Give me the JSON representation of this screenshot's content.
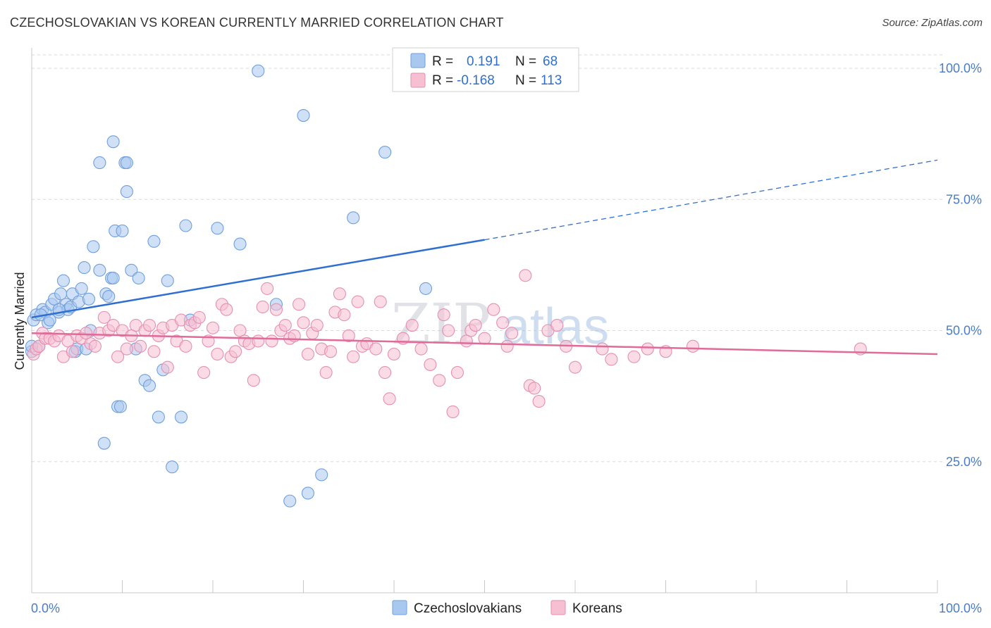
{
  "title": "CZECHOSLOVAKIAN VS KOREAN CURRENTLY MARRIED CORRELATION CHART",
  "source": "Source: ZipAtlas.com",
  "watermark": {
    "zip": "ZIP",
    "atlas": "atlas"
  },
  "chart_data": {
    "type": "scatter",
    "title": "CZECHOSLOVAKIAN VS KOREAN CURRENTLY MARRIED CORRELATION CHART",
    "xlabel": "",
    "ylabel": "Currently Married",
    "xlim": [
      0,
      100
    ],
    "ylim": [
      0,
      105
    ],
    "x_tick_labels": [
      "0.0%",
      "100.0%"
    ],
    "y_ticks": [
      25,
      50,
      75,
      100
    ],
    "y_tick_labels": [
      "25.0%",
      "50.0%",
      "75.0%",
      "100.0%"
    ],
    "grid": "horizontal dashed",
    "legend_position": "top-center",
    "legend": [
      {
        "name": "Czechoslovakians",
        "r_label": "R =",
        "r": "0.191",
        "n_label": "N =",
        "n": "68",
        "color": "#a9c8f0",
        "stroke": "#6f9fdc"
      },
      {
        "name": "Koreans",
        "r_label": "R =",
        "r": "-0.168",
        "n_label": "N =",
        "n": "113",
        "color": "#f7bfd2",
        "stroke": "#e68fb0"
      }
    ],
    "series": [
      {
        "name": "Czechoslovakians",
        "color": "#a9c8f0",
        "stroke": "#6f9fdc",
        "trend": {
          "x0": 0,
          "y0": 52.5,
          "x1": 50,
          "y1": 67.3,
          "x_dash_end": 100,
          "y_dash_end": 82.5,
          "color": "#2e6fd0"
        },
        "points": [
          [
            0.2,
            52
          ],
          [
            0.5,
            53
          ],
          [
            0.8,
            47
          ],
          [
            1.2,
            54
          ],
          [
            1.5,
            53.5
          ],
          [
            1.8,
            51.5
          ],
          [
            2.2,
            55
          ],
          [
            2.5,
            56
          ],
          [
            3,
            53.5
          ],
          [
            3.2,
            57
          ],
          [
            3.5,
            59.5
          ],
          [
            3.8,
            55
          ],
          [
            4,
            54
          ],
          [
            4.3,
            54.5
          ],
          [
            4.5,
            57
          ],
          [
            4.8,
            46
          ],
          [
            5,
            46.5
          ],
          [
            5.2,
            55.5
          ],
          [
            5.5,
            58
          ],
          [
            5.8,
            62
          ],
          [
            6,
            46.5
          ],
          [
            6.3,
            56
          ],
          [
            6.5,
            50
          ],
          [
            6.8,
            66
          ],
          [
            7.5,
            82
          ],
          [
            7.5,
            61.5
          ],
          [
            8,
            28.5
          ],
          [
            8.2,
            57
          ],
          [
            8.5,
            56.5
          ],
          [
            8.8,
            60
          ],
          [
            9,
            86
          ],
          [
            9,
            60
          ],
          [
            9.2,
            69
          ],
          [
            9.5,
            35.5
          ],
          [
            9.8,
            35.5
          ],
          [
            10,
            69
          ],
          [
            10.3,
            82
          ],
          [
            10.5,
            82
          ],
          [
            10.5,
            76.5
          ],
          [
            11,
            61.5
          ],
          [
            11.5,
            46.5
          ],
          [
            11.8,
            60
          ],
          [
            12.5,
            40.5
          ],
          [
            13,
            39.5
          ],
          [
            13.5,
            67
          ],
          [
            14,
            33.5
          ],
          [
            14.5,
            42.5
          ],
          [
            15,
            59.5
          ],
          [
            15.5,
            24
          ],
          [
            16.5,
            33.5
          ],
          [
            17,
            70
          ],
          [
            17.5,
            52
          ],
          [
            20.5,
            69.5
          ],
          [
            23,
            66.5
          ],
          [
            25,
            99.5
          ],
          [
            27,
            55
          ],
          [
            28.5,
            17.5
          ],
          [
            30,
            91
          ],
          [
            30.5,
            19
          ],
          [
            32,
            22.5
          ],
          [
            35.5,
            71.5
          ],
          [
            39,
            84
          ],
          [
            43.5,
            58
          ],
          [
            0,
            46
          ],
          [
            0,
            47
          ],
          [
            1,
            53
          ],
          [
            2,
            52
          ],
          [
            3,
            54
          ]
        ]
      },
      {
        "name": "Koreans",
        "color": "#f7bfd2",
        "stroke": "#e68fb0",
        "trend": {
          "x0": 0,
          "y0": 49.5,
          "x1": 100,
          "y1": 45.5,
          "color": "#e06a98"
        },
        "points": [
          [
            0.2,
            45.5
          ],
          [
            0.5,
            46.5
          ],
          [
            0.8,
            47
          ],
          [
            1.2,
            49.5
          ],
          [
            1.5,
            48.5
          ],
          [
            2,
            48.5
          ],
          [
            2.5,
            48
          ],
          [
            3,
            49
          ],
          [
            3.5,
            45
          ],
          [
            4,
            48
          ],
          [
            4.5,
            46
          ],
          [
            5,
            49
          ],
          [
            5.5,
            48.5
          ],
          [
            6,
            49.5
          ],
          [
            6.5,
            47.5
          ],
          [
            7,
            47
          ],
          [
            7.5,
            49.5
          ],
          [
            8,
            52.5
          ],
          [
            8.5,
            50
          ],
          [
            9,
            51
          ],
          [
            9.5,
            45
          ],
          [
            10,
            50
          ],
          [
            10.5,
            46.5
          ],
          [
            11,
            49
          ],
          [
            11.5,
            51
          ],
          [
            12,
            47
          ],
          [
            12.5,
            50
          ],
          [
            13,
            51
          ],
          [
            13.5,
            46
          ],
          [
            14,
            49
          ],
          [
            14.5,
            50.5
          ],
          [
            15,
            43
          ],
          [
            15.5,
            51
          ],
          [
            16,
            48
          ],
          [
            16.5,
            52
          ],
          [
            17,
            47
          ],
          [
            17.5,
            51
          ],
          [
            18,
            51.5
          ],
          [
            18.5,
            52.5
          ],
          [
            19,
            42
          ],
          [
            19.5,
            48
          ],
          [
            20,
            50.5
          ],
          [
            20.5,
            45.5
          ],
          [
            21,
            55
          ],
          [
            21.5,
            54
          ],
          [
            22,
            45
          ],
          [
            22.5,
            46
          ],
          [
            23,
            50
          ],
          [
            23.5,
            48
          ],
          [
            24,
            47.5
          ],
          [
            24.5,
            40.5
          ],
          [
            25,
            48
          ],
          [
            25.5,
            54.5
          ],
          [
            26,
            58
          ],
          [
            26.5,
            48
          ],
          [
            27,
            54
          ],
          [
            27.5,
            50
          ],
          [
            28,
            51
          ],
          [
            28.5,
            48.5
          ],
          [
            29,
            49
          ],
          [
            29.5,
            55
          ],
          [
            30,
            51.5
          ],
          [
            30.5,
            45.5
          ],
          [
            31,
            49.5
          ],
          [
            31.5,
            51
          ],
          [
            32,
            46.5
          ],
          [
            32.5,
            42
          ],
          [
            33,
            46
          ],
          [
            33.5,
            53.5
          ],
          [
            34,
            57
          ],
          [
            34.5,
            53
          ],
          [
            35,
            49
          ],
          [
            35.5,
            45
          ],
          [
            36,
            55.5
          ],
          [
            36.5,
            47
          ],
          [
            37,
            47.5
          ],
          [
            38,
            46.5
          ],
          [
            38.5,
            55.5
          ],
          [
            39,
            42
          ],
          [
            39.5,
            37
          ],
          [
            40,
            45.5
          ],
          [
            41,
            48.5
          ],
          [
            42,
            51
          ],
          [
            43,
            46.5
          ],
          [
            44,
            43.5
          ],
          [
            45,
            40.5
          ],
          [
            45.5,
            53
          ],
          [
            46,
            50
          ],
          [
            46.5,
            34.5
          ],
          [
            47,
            42
          ],
          [
            48,
            48
          ],
          [
            48.5,
            50
          ],
          [
            49,
            51
          ],
          [
            50,
            48.5
          ],
          [
            51,
            54
          ],
          [
            52,
            51.5
          ],
          [
            52.5,
            47
          ],
          [
            53,
            49.5
          ],
          [
            54.5,
            60.5
          ],
          [
            55,
            39.5
          ],
          [
            55.5,
            39
          ],
          [
            56,
            36.5
          ],
          [
            57,
            50
          ],
          [
            58,
            51
          ],
          [
            59,
            47
          ],
          [
            60,
            43
          ],
          [
            63,
            46.5
          ],
          [
            64,
            44.5
          ],
          [
            66.5,
            45
          ],
          [
            68,
            46.5
          ],
          [
            70,
            46
          ],
          [
            73,
            47
          ],
          [
            91.5,
            46.5
          ]
        ]
      }
    ]
  }
}
